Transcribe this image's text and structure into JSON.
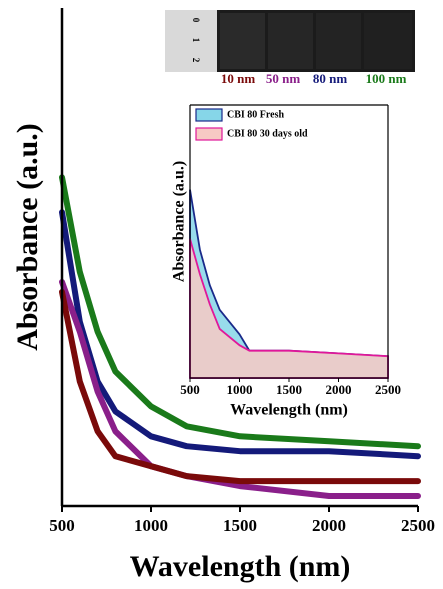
{
  "chart_data": [
    {
      "type": "line",
      "x_label": "Wavelength (nm)",
      "y_label": "Absorbance (a.u.)",
      "x": [
        500,
        600,
        700,
        800,
        1000,
        1200,
        1500,
        2000,
        2500
      ],
      "series": [
        {
          "name": "10 nm",
          "color": "#7a0a0a",
          "values": [
            0.43,
            0.25,
            0.15,
            0.1,
            0.08,
            0.06,
            0.05,
            0.05,
            0.05
          ]
        },
        {
          "name": "50 nm",
          "color": "#8a1f8a",
          "values": [
            0.45,
            0.35,
            0.23,
            0.15,
            0.08,
            0.06,
            0.04,
            0.02,
            0.02
          ]
        },
        {
          "name": "80 nm",
          "color": "#141a7a",
          "values": [
            0.59,
            0.37,
            0.25,
            0.19,
            0.14,
            0.12,
            0.11,
            0.11,
            0.1
          ]
        },
        {
          "name": "100 nm",
          "color": "#1a7a1a",
          "values": [
            0.66,
            0.47,
            0.35,
            0.27,
            0.2,
            0.16,
            0.14,
            0.13,
            0.12
          ]
        }
      ],
      "xlim": [
        500,
        2500
      ],
      "xticks": [
        500,
        1000,
        1500,
        2000,
        2500
      ],
      "ylim": [
        0,
        1
      ]
    },
    {
      "type": "area",
      "x_label": "Wavelength (nm)",
      "y_label": "Absorbance (a.u.)",
      "x": [
        500,
        600,
        700,
        800,
        1000,
        1100,
        1200,
        1500,
        2000,
        2500
      ],
      "series": [
        {
          "name": "CBI 80 Fresh",
          "color": "#1a2a8a",
          "fill": "#86d6e8",
          "values": [
            0.69,
            0.47,
            0.34,
            0.25,
            0.16,
            0.1,
            0.1,
            0.1,
            0.09,
            0.08
          ]
        },
        {
          "name": "CBI 80 30 days old",
          "color": "#e0189a",
          "fill": "#f7c9c4",
          "values": [
            0.51,
            0.38,
            0.27,
            0.18,
            0.12,
            0.1,
            0.1,
            0.1,
            0.09,
            0.08
          ]
        }
      ],
      "xlim": [
        500,
        2500
      ],
      "xticks": [
        500,
        1000,
        1500,
        2000,
        2500
      ],
      "ylim": [
        0,
        1
      ],
      "legend": "top-left"
    }
  ],
  "photo": {
    "ruler_labels": [
      "0",
      "1",
      "2"
    ]
  }
}
